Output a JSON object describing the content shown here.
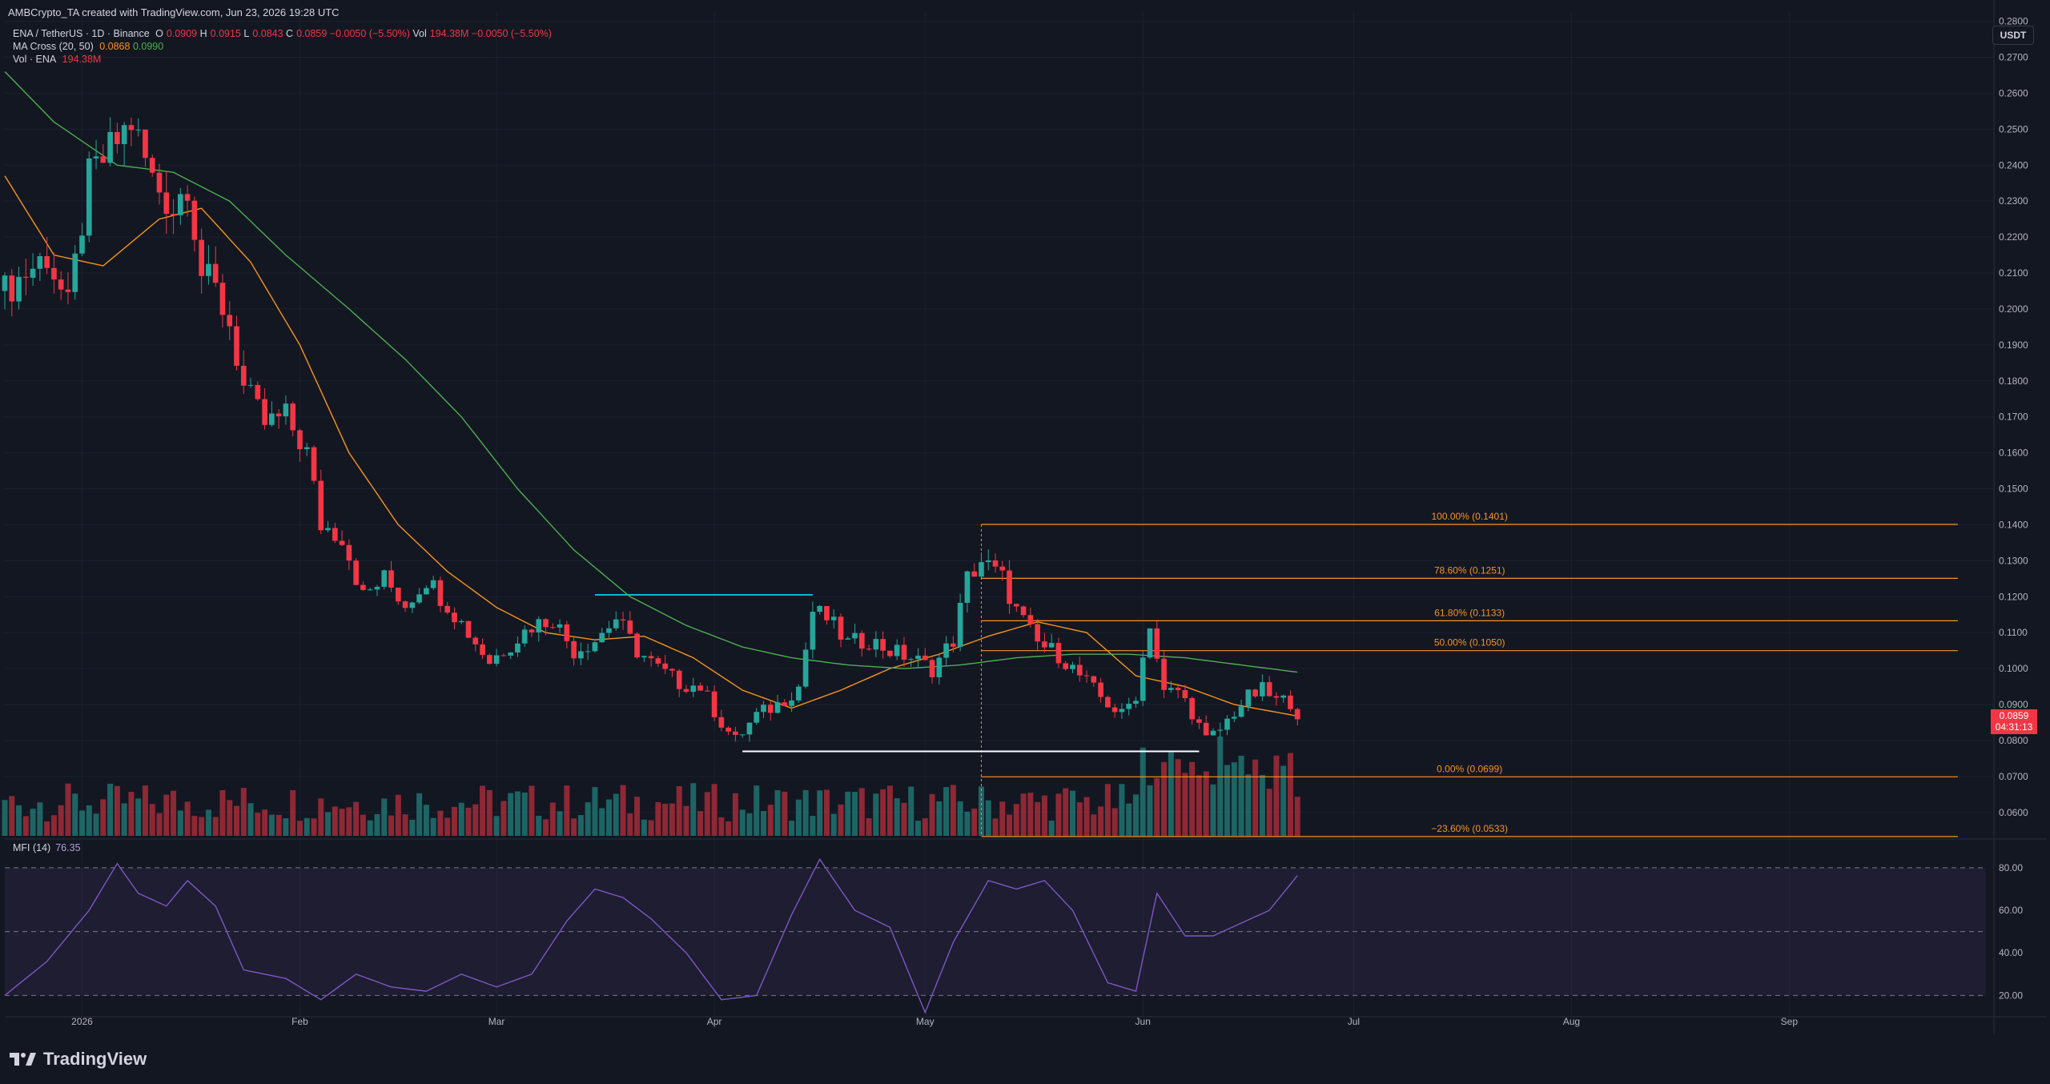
{
  "header": {
    "attribution": "AMBCrypto_TA created with TradingView.com, Jun 23, 2026 19:28 UTC"
  },
  "legend": {
    "symbol": "ENA / TetherUS · 1D · Binance",
    "ohlc": {
      "o_label": "O",
      "o": "0.0909",
      "h_label": "H",
      "h": "0.0915",
      "l_label": "L",
      "l": "0.0843",
      "c_label": "C",
      "c": "0.0859",
      "change": "−0.0050 (−5.50%)"
    },
    "vol_label": "Vol",
    "vol": "194.38M",
    "vol_change": "−0.0050 (−5.50%)",
    "ma_label": "MA Cross (20, 50)",
    "ma20": "0.0868",
    "ma50": "0.0990",
    "vol_ind_label": "Vol · ENA",
    "vol_ind_value": "194.38M",
    "mfi_label": "MFI (14)",
    "mfi_value": "76.35"
  },
  "currency": "USDT",
  "last_price": {
    "price": "0.0859",
    "countdown": "04:31:13"
  },
  "branding": {
    "name": "TradingView"
  },
  "colors": {
    "background": "#131722",
    "up": "#26a69a",
    "down": "#f23645",
    "ma20": "#f7931a",
    "ma50": "#4caf50",
    "fib": "#f7931a",
    "mfi": "#7e57c2",
    "support_line": "#ffffff",
    "resistance_line": "#00bcd4"
  },
  "chart_data": {
    "type": "candlestick",
    "price_axis": {
      "ylim": [
        0.0535,
        0.2828
      ],
      "ticks": [
        "0.0600",
        "0.0700",
        "0.0800",
        "0.0900",
        "0.1000",
        "0.1100",
        "0.1200",
        "0.1300",
        "0.1400",
        "0.1500",
        "0.1600",
        "0.1700",
        "0.1800",
        "0.1900",
        "0.2000",
        "0.2100",
        "0.2200",
        "0.2300",
        "0.2400",
        "0.2500",
        "0.2600",
        "0.2700",
        "0.2800"
      ]
    },
    "time_axis": {
      "xlim": [
        "2025-12-21",
        "2026-09-29"
      ],
      "ticks": [
        {
          "label": "2026",
          "date": "2026-01-01"
        },
        {
          "label": "Feb",
          "date": "2026-02-01"
        },
        {
          "label": "Mar",
          "date": "2026-03-01"
        },
        {
          "label": "Apr",
          "date": "2026-04-01"
        },
        {
          "label": "May",
          "date": "2026-05-01"
        },
        {
          "label": "Jun",
          "date": "2026-06-01"
        },
        {
          "label": "Jul",
          "date": "2026-07-01"
        },
        {
          "label": "Aug",
          "date": "2026-08-01"
        },
        {
          "label": "Sep",
          "date": "2026-09-01"
        }
      ]
    },
    "close_anchors": [
      [
        "2025-12-21",
        0.205
      ],
      [
        "2025-12-24",
        0.21
      ],
      [
        "2025-12-27",
        0.215
      ],
      [
        "2025-12-30",
        0.2
      ],
      [
        "2026-01-02",
        0.236
      ],
      [
        "2026-01-05",
        0.244
      ],
      [
        "2026-01-08",
        0.252
      ],
      [
        "2026-01-11",
        0.236
      ],
      [
        "2026-01-14",
        0.228
      ],
      [
        "2026-01-16",
        0.236
      ],
      [
        "2026-01-18",
        0.21
      ],
      [
        "2026-01-20",
        0.205
      ],
      [
        "2026-01-22",
        0.196
      ],
      [
        "2026-01-24",
        0.178
      ],
      [
        "2026-01-27",
        0.168
      ],
      [
        "2026-01-30",
        0.17
      ],
      [
        "2026-02-02",
        0.16
      ],
      [
        "2026-02-04",
        0.14
      ],
      [
        "2026-02-07",
        0.137
      ],
      [
        "2026-02-10",
        0.12
      ],
      [
        "2026-02-13",
        0.125
      ],
      [
        "2026-02-16",
        0.118
      ],
      [
        "2026-02-19",
        0.125
      ],
      [
        "2026-02-22",
        0.118
      ],
      [
        "2026-02-25",
        0.11
      ],
      [
        "2026-02-28",
        0.102
      ],
      [
        "2026-03-03",
        0.107
      ],
      [
        "2026-03-06",
        0.112
      ],
      [
        "2026-03-09",
        0.114
      ],
      [
        "2026-03-12",
        0.105
      ],
      [
        "2026-03-15",
        0.108
      ],
      [
        "2026-03-18",
        0.114
      ],
      [
        "2026-03-21",
        0.105
      ],
      [
        "2026-03-24",
        0.1
      ],
      [
        "2026-03-27",
        0.096
      ],
      [
        "2026-03-30",
        0.095
      ],
      [
        "2026-04-02",
        0.085
      ],
      [
        "2026-04-04",
        0.08
      ],
      [
        "2026-04-07",
        0.087
      ],
      [
        "2026-04-10",
        0.09
      ],
      [
        "2026-04-13",
        0.095
      ],
      [
        "2026-04-15",
        0.116
      ],
      [
        "2026-04-17",
        0.114
      ],
      [
        "2026-04-20",
        0.107
      ],
      [
        "2026-04-23",
        0.108
      ],
      [
        "2026-04-26",
        0.105
      ],
      [
        "2026-04-29",
        0.103
      ],
      [
        "2026-05-02",
        0.1
      ],
      [
        "2026-05-05",
        0.108
      ],
      [
        "2026-05-07",
        0.125
      ],
      [
        "2026-05-09",
        0.13
      ],
      [
        "2026-05-12",
        0.125
      ],
      [
        "2026-05-14",
        0.116
      ],
      [
        "2026-05-17",
        0.107
      ],
      [
        "2026-05-20",
        0.104
      ],
      [
        "2026-05-23",
        0.098
      ],
      [
        "2026-05-26",
        0.092
      ],
      [
        "2026-05-29",
        0.087
      ],
      [
        "2026-05-31",
        0.093
      ],
      [
        "2026-06-02",
        0.113
      ],
      [
        "2026-06-04",
        0.093
      ],
      [
        "2026-06-06",
        0.094
      ],
      [
        "2026-06-08",
        0.088
      ],
      [
        "2026-06-10",
        0.08
      ],
      [
        "2026-06-12",
        0.083
      ],
      [
        "2026-06-14",
        0.088
      ],
      [
        "2026-06-16",
        0.092
      ],
      [
        "2026-06-18",
        0.094
      ],
      [
        "2026-06-20",
        0.091
      ],
      [
        "2026-06-22",
        0.091
      ],
      [
        "2026-06-23",
        0.0859
      ]
    ],
    "ma20_anchors": [
      [
        "2025-12-21",
        0.237
      ],
      [
        "2025-12-28",
        0.215
      ],
      [
        "2026-01-04",
        0.212
      ],
      [
        "2026-01-12",
        0.225
      ],
      [
        "2026-01-18",
        0.228
      ],
      [
        "2026-01-25",
        0.213
      ],
      [
        "2026-02-01",
        0.19
      ],
      [
        "2026-02-08",
        0.16
      ],
      [
        "2026-02-15",
        0.14
      ],
      [
        "2026-02-22",
        0.127
      ],
      [
        "2026-03-01",
        0.117
      ],
      [
        "2026-03-08",
        0.11
      ],
      [
        "2026-03-15",
        0.108
      ],
      [
        "2026-03-22",
        0.109
      ],
      [
        "2026-03-29",
        0.103
      ],
      [
        "2026-04-05",
        0.094
      ],
      [
        "2026-04-12",
        0.089
      ],
      [
        "2026-04-19",
        0.094
      ],
      [
        "2026-04-26",
        0.1
      ],
      [
        "2026-05-03",
        0.104
      ],
      [
        "2026-05-10",
        0.109
      ],
      [
        "2026-05-17",
        0.113
      ],
      [
        "2026-05-24",
        0.11
      ],
      [
        "2026-05-31",
        0.098
      ],
      [
        "2026-06-07",
        0.095
      ],
      [
        "2026-06-14",
        0.09
      ],
      [
        "2026-06-23",
        0.0868
      ]
    ],
    "ma50_anchors": [
      [
        "2025-12-21",
        0.266
      ],
      [
        "2025-12-28",
        0.252
      ],
      [
        "2026-01-06",
        0.24
      ],
      [
        "2026-01-14",
        0.238
      ],
      [
        "2026-01-22",
        0.23
      ],
      [
        "2026-01-30",
        0.215
      ],
      [
        "2026-02-08",
        0.2
      ],
      [
        "2026-02-16",
        0.186
      ],
      [
        "2026-02-24",
        0.17
      ],
      [
        "2026-03-04",
        0.15
      ],
      [
        "2026-03-12",
        0.133
      ],
      [
        "2026-03-20",
        0.12
      ],
      [
        "2026-03-28",
        0.112
      ],
      [
        "2026-04-05",
        0.106
      ],
      [
        "2026-04-12",
        0.103
      ],
      [
        "2026-04-20",
        0.101
      ],
      [
        "2026-04-28",
        0.1
      ],
      [
        "2026-05-06",
        0.101
      ],
      [
        "2026-05-14",
        0.103
      ],
      [
        "2026-05-22",
        0.104
      ],
      [
        "2026-05-30",
        0.104
      ],
      [
        "2026-06-07",
        0.103
      ],
      [
        "2026-06-15",
        0.101
      ],
      [
        "2026-06-23",
        0.099
      ]
    ],
    "fibonacci": {
      "start_date": "2026-05-09",
      "end_date": "2026-09-25",
      "levels": [
        {
          "label": "100.00% (0.1401)",
          "price": 0.1401
        },
        {
          "label": "78.60% (0.1251)",
          "price": 0.1251
        },
        {
          "label": "61.80% (0.1133)",
          "price": 0.1133
        },
        {
          "label": "50.00% (0.1050)",
          "price": 0.105
        },
        {
          "label": "0.00% (0.0699)",
          "price": 0.0699
        },
        {
          "label": "−23.60% (0.0533)",
          "price": 0.0533
        }
      ]
    },
    "trendlines": [
      {
        "name": "resistance",
        "from": [
          "2026-03-15",
          0.1205
        ],
        "to": [
          "2026-04-15",
          0.1205
        ]
      },
      {
        "name": "support",
        "from": [
          "2026-04-05",
          0.077
        ],
        "to": [
          "2026-06-09",
          0.077
        ]
      }
    ],
    "mfi": {
      "ylim": [
        10,
        92
      ],
      "ticks": [
        "20.00",
        "40.00",
        "60.00",
        "80.00"
      ],
      "band": [
        20,
        80
      ],
      "anchors": [
        [
          "2025-12-21",
          20
        ],
        [
          "2025-12-27",
          36
        ],
        [
          "2026-01-02",
          60
        ],
        [
          "2026-01-06",
          82
        ],
        [
          "2026-01-09",
          68
        ],
        [
          "2026-01-13",
          62
        ],
        [
          "2026-01-16",
          74
        ],
        [
          "2026-01-20",
          62
        ],
        [
          "2026-01-24",
          32
        ],
        [
          "2026-01-30",
          28
        ],
        [
          "2026-02-04",
          18
        ],
        [
          "2026-02-09",
          30
        ],
        [
          "2026-02-14",
          24
        ],
        [
          "2026-02-19",
          22
        ],
        [
          "2026-02-24",
          30
        ],
        [
          "2026-03-01",
          24
        ],
        [
          "2026-03-06",
          30
        ],
        [
          "2026-03-11",
          55
        ],
        [
          "2026-03-15",
          70
        ],
        [
          "2026-03-19",
          66
        ],
        [
          "2026-03-23",
          56
        ],
        [
          "2026-03-28",
          40
        ],
        [
          "2026-04-02",
          18
        ],
        [
          "2026-04-07",
          20
        ],
        [
          "2026-04-12",
          58
        ],
        [
          "2026-04-16",
          84
        ],
        [
          "2026-04-21",
          60
        ],
        [
          "2026-04-26",
          52
        ],
        [
          "2026-05-01",
          12
        ],
        [
          "2026-05-05",
          45
        ],
        [
          "2026-05-10",
          74
        ],
        [
          "2026-05-14",
          70
        ],
        [
          "2026-05-18",
          74
        ],
        [
          "2026-05-22",
          60
        ],
        [
          "2026-05-27",
          26
        ],
        [
          "2026-05-31",
          22
        ],
        [
          "2026-06-03",
          68
        ],
        [
          "2026-06-07",
          48
        ],
        [
          "2026-06-11",
          48
        ],
        [
          "2026-06-15",
          54
        ],
        [
          "2026-06-19",
          60
        ],
        [
          "2026-06-23",
          76.35
        ]
      ]
    }
  }
}
